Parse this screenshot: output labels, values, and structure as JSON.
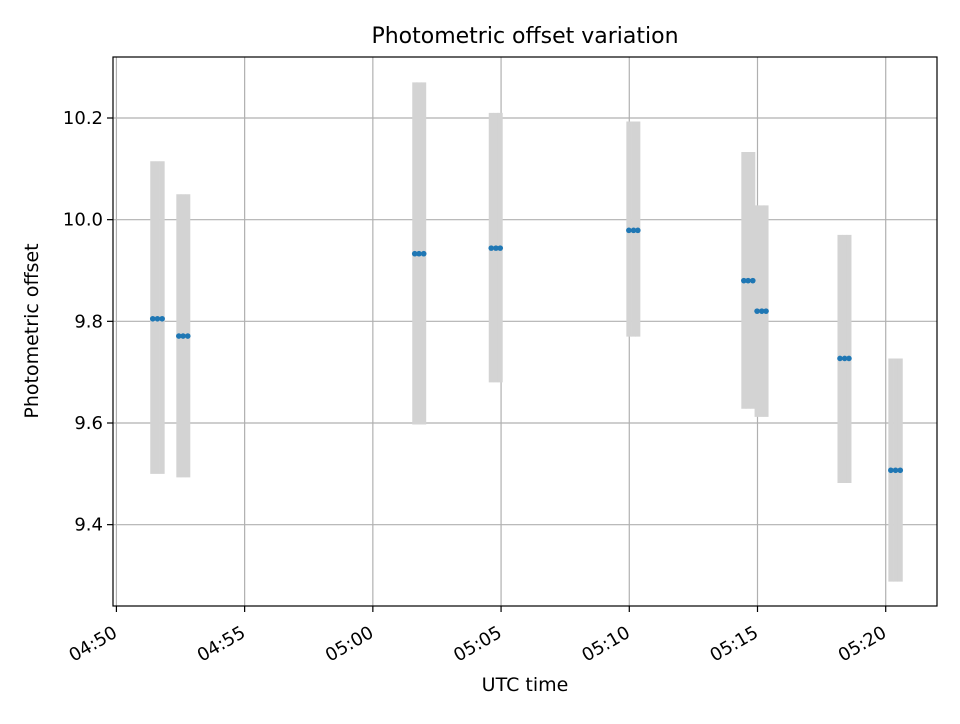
{
  "chart_data": {
    "type": "scatter",
    "title": "Photometric offset variation",
    "xlabel": "UTC time",
    "ylabel": "Photometric offset",
    "x_unit": "UTC time (HH:MM)",
    "xlim": [
      "04:49:52",
      "05:22:00"
    ],
    "ylim": [
      9.24,
      10.32
    ],
    "x_ticks": [
      "04:50",
      "04:55",
      "05:00",
      "05:05",
      "05:10",
      "05:15",
      "05:20"
    ],
    "y_ticks": [
      9.4,
      9.6,
      9.8,
      10.0,
      10.2
    ],
    "y_tick_labels": [
      "9.4",
      "9.6",
      "9.8",
      "10.0",
      "10.2"
    ],
    "grid": true,
    "legend": "none",
    "point_color": "#1f77b4",
    "errorbar_color": "#d3d3d3",
    "groups": [
      {
        "times": [
          "04:51:25",
          "04:51:36",
          "04:51:47"
        ],
        "y": 9.805,
        "err_low": 9.5,
        "err_high": 10.115
      },
      {
        "times": [
          "04:52:26",
          "04:52:36",
          "04:52:47"
        ],
        "y": 9.771,
        "err_low": 9.493,
        "err_high": 10.05
      },
      {
        "times": [
          "05:01:38",
          "05:01:48",
          "05:01:59"
        ],
        "y": 9.933,
        "err_low": 9.597,
        "err_high": 10.27
      },
      {
        "times": [
          "05:04:37",
          "05:04:48",
          "05:04:58"
        ],
        "y": 9.944,
        "err_low": 9.68,
        "err_high": 10.21
      },
      {
        "times": [
          "05:09:59",
          "05:10:10",
          "05:10:20"
        ],
        "y": 9.979,
        "err_low": 9.77,
        "err_high": 10.193
      },
      {
        "times": [
          "05:14:28",
          "05:14:38",
          "05:14:49"
        ],
        "y": 9.88,
        "err_low": 9.628,
        "err_high": 10.133
      },
      {
        "times": [
          "05:14:59",
          "05:15:10",
          "05:15:20"
        ],
        "y": 9.82,
        "err_low": 9.612,
        "err_high": 10.028
      },
      {
        "times": [
          "05:18:13",
          "05:18:24",
          "05:18:34"
        ],
        "y": 9.727,
        "err_low": 9.482,
        "err_high": 9.97
      },
      {
        "times": [
          "05:20:12",
          "05:20:23",
          "05:20:34"
        ],
        "y": 9.507,
        "err_low": 9.288,
        "err_high": 9.727
      }
    ]
  }
}
